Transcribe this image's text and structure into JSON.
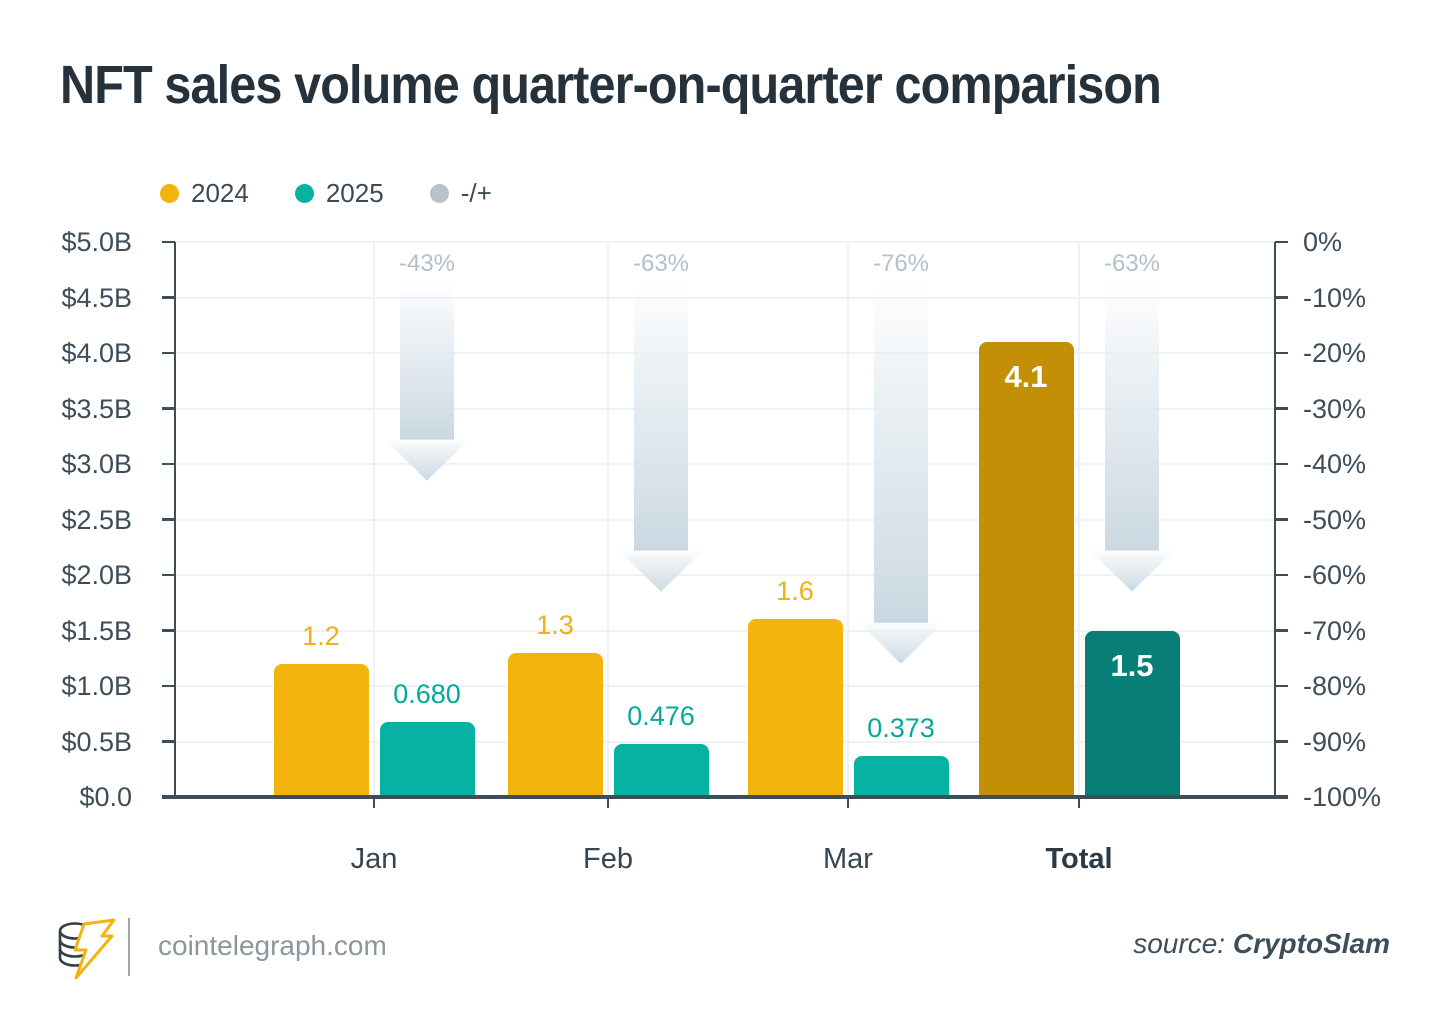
{
  "title": "NFT sales volume quarter-on-quarter comparison",
  "legend": {
    "items": [
      {
        "label": "2024",
        "color": "#F2B40D"
      },
      {
        "label": "2025",
        "color": "#08B2A3"
      },
      {
        "label": "-/+",
        "color": "#B7C2CB"
      }
    ]
  },
  "chart_data": {
    "type": "bar",
    "title": "NFT sales volume quarter-on-quarter comparison",
    "categories": [
      "Jan",
      "Feb",
      "Mar",
      "Total"
    ],
    "categories_emphasis": [
      false,
      false,
      false,
      true
    ],
    "series": [
      {
        "name": "2024",
        "values": [
          1.2,
          1.3,
          1.6,
          4.1
        ],
        "value_labels": [
          "1.2",
          "1.3",
          "1.6",
          "4.1"
        ],
        "bar_colors": [
          "#F2B40D",
          "#F2B40D",
          "#F2B40D",
          "#C28F06"
        ],
        "label_colors": [
          "#EFAF15",
          "#EFAF15",
          "#EFAF15",
          "#FFFFFF"
        ],
        "label_positions": [
          "above",
          "above",
          "above",
          "inside"
        ]
      },
      {
        "name": "2025",
        "values": [
          0.68,
          0.476,
          0.373,
          1.5
        ],
        "value_labels": [
          "0.680",
          "0.476",
          "0.373",
          "1.5"
        ],
        "bar_colors": [
          "#08B2A3",
          "#08B2A3",
          "#08B2A3",
          "#077E76"
        ],
        "label_colors": [
          "#04A99C",
          "#04A99C",
          "#04A99C",
          "#FFFFFF"
        ],
        "label_positions": [
          "above",
          "above",
          "above",
          "inside"
        ]
      }
    ],
    "change_series": {
      "name": "-/+",
      "values_pct": [
        -43,
        -63,
        -76,
        -63
      ],
      "labels": [
        "-43%",
        "-63%",
        "-76%",
        "-63%"
      ],
      "label_color": "#B4C0C9",
      "arrow_gradient_top": "#E9EFF3",
      "arrow_gradient_bottom": "#CBD8E1"
    },
    "y_left": {
      "unit": "USD billions",
      "min": 0,
      "max": 5,
      "ticks": [
        "$5.0B",
        "$4.5B",
        "$4.0B",
        "$3.5B",
        "$3.0B",
        "$2.5B",
        "$2.0B",
        "$1.5B",
        "$1.0B",
        "$0.5B",
        "$0.0"
      ]
    },
    "y_right": {
      "unit": "percent change",
      "min": -100,
      "max": 0,
      "ticks": [
        "0%",
        "-10%",
        "-20%",
        "-30%",
        "-40%",
        "-50%",
        "-60%",
        "-70%",
        "-80%",
        "-90%",
        "-100%"
      ]
    },
    "grid": true,
    "legend_position": "top-left"
  },
  "footer": {
    "site": "cointelegraph.com",
    "source_prefix": "source:",
    "source_name": "CryptoSlam"
  },
  "colors": {
    "accent_gold": "#F2B40D",
    "accent_gold_dark": "#C28F06",
    "accent_teal": "#08B2A3",
    "accent_teal_dark": "#077E76",
    "axis": "#3E4E59",
    "grid": "#EFF2F4",
    "title_text": "#25323C",
    "muted_text": "#8C969D",
    "pct_text": "#B4C0C9"
  }
}
